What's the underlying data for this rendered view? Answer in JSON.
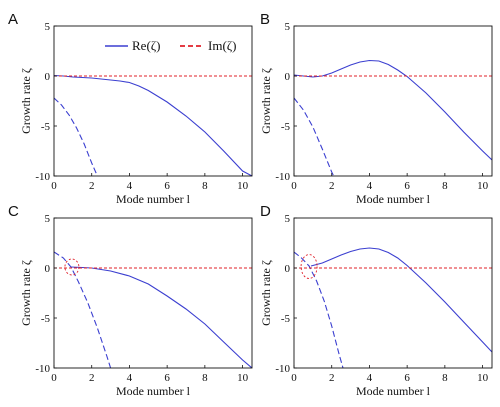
{
  "legend": {
    "re_label": "Re(ζ)",
    "im_label": "Im(ζ)"
  },
  "colors": {
    "re": "#3b3fd0",
    "im": "#e0202a",
    "axis": "#111111"
  },
  "chart_data": [
    {
      "id": "A",
      "type": "line",
      "xlabel": "Mode number l",
      "ylabel": "Growth rate ζ",
      "xlim": [
        0,
        10.5
      ],
      "ylim": [
        -10,
        5
      ],
      "xticks": [
        0,
        2,
        4,
        6,
        8,
        10
      ],
      "yticks": [
        -10,
        -5,
        0,
        5
      ],
      "grid": false,
      "legend": "top-center",
      "series": [
        {
          "name": "Re(ζ)",
          "style": "solid",
          "x": [
            0,
            0.5,
            1,
            1.5,
            2,
            2.5,
            3,
            3.5,
            4,
            4.5,
            5,
            6,
            7,
            8,
            9,
            10,
            10.5
          ],
          "y": [
            0.05,
            0.0,
            -0.1,
            -0.15,
            -0.2,
            -0.3,
            -0.4,
            -0.5,
            -0.65,
            -1.0,
            -1.45,
            -2.6,
            -4.0,
            -5.6,
            -7.5,
            -9.5,
            -10
          ]
        },
        {
          "name": "Re(ζ)",
          "style": "dashed",
          "x": [
            0,
            0.4,
            0.8,
            1.2,
            1.6,
            2.0,
            2.3
          ],
          "y": [
            -2.2,
            -2.9,
            -3.9,
            -5.2,
            -6.8,
            -8.7,
            -10
          ]
        },
        {
          "name": "Im(ζ)",
          "style": "dotted",
          "x": [
            0,
            10.5
          ],
          "y": [
            0,
            0
          ]
        }
      ]
    },
    {
      "id": "B",
      "type": "line",
      "xlabel": "Mode number l",
      "ylabel": "Growth rate ζ",
      "xlim": [
        0,
        10.5
      ],
      "ylim": [
        -10,
        5
      ],
      "xticks": [
        0,
        2,
        4,
        6,
        8,
        10
      ],
      "yticks": [
        -10,
        -5,
        0,
        5
      ],
      "grid": false,
      "series": [
        {
          "name": "Re(ζ)",
          "style": "solid",
          "x": [
            0,
            0.5,
            1,
            1.5,
            2,
            2.5,
            3,
            3.5,
            4,
            4.5,
            5,
            5.5,
            6,
            7,
            8,
            9,
            10,
            10.5
          ],
          "y": [
            0.1,
            0.0,
            -0.1,
            0.0,
            0.3,
            0.7,
            1.1,
            1.4,
            1.55,
            1.5,
            1.15,
            0.6,
            -0.05,
            -1.7,
            -3.6,
            -5.6,
            -7.5,
            -8.4
          ]
        },
        {
          "name": "Re(ζ)",
          "style": "dashed",
          "x": [
            0,
            0.5,
            1,
            1.5,
            2.0,
            2.1
          ],
          "y": [
            -2.2,
            -3.4,
            -5.1,
            -7.3,
            -9.6,
            -10
          ]
        },
        {
          "name": "Im(ζ)",
          "style": "dotted",
          "x": [
            0,
            10.5
          ],
          "y": [
            0,
            0
          ]
        }
      ]
    },
    {
      "id": "C",
      "type": "line",
      "xlabel": "Mode number l",
      "ylabel": "Growth rate ζ",
      "xlim": [
        0,
        10.5
      ],
      "ylim": [
        -10,
        5
      ],
      "xticks": [
        0,
        2,
        4,
        6,
        8,
        10
      ],
      "yticks": [
        -10,
        -5,
        0,
        5
      ],
      "grid": false,
      "series": [
        {
          "name": "Re(ζ)",
          "style": "solid",
          "x": [
            0.9,
            1.5,
            2,
            3,
            4,
            5,
            6,
            7,
            8,
            9,
            10,
            10.5
          ],
          "y": [
            0.1,
            0.05,
            0.0,
            -0.3,
            -0.8,
            -1.6,
            -2.8,
            -4.1,
            -5.6,
            -7.4,
            -9.2,
            -10
          ]
        },
        {
          "name": "Re(ζ)",
          "style": "dashed",
          "x": [
            0,
            0.5,
            0.9,
            1.3,
            1.8,
            2.3,
            2.8,
            3.0
          ],
          "y": [
            1.6,
            1.0,
            0.1,
            -1.4,
            -3.5,
            -6.0,
            -8.8,
            -10
          ]
        },
        {
          "name": "Im(ζ)",
          "style": "dotted",
          "x": [
            0,
            10.5
          ],
          "y": [
            0,
            0
          ]
        }
      ]
    },
    {
      "id": "D",
      "type": "line",
      "xlabel": "Mode number l",
      "ylabel": "Growth rate ζ",
      "xlim": [
        0,
        10.5
      ],
      "ylim": [
        -10,
        5
      ],
      "xticks": [
        0,
        2,
        4,
        6,
        8,
        10
      ],
      "yticks": [
        -10,
        -5,
        0,
        5
      ],
      "grid": false,
      "series": [
        {
          "name": "Re(ζ)",
          "style": "solid",
          "x": [
            0.9,
            1.5,
            2,
            2.5,
            3,
            3.5,
            4,
            4.5,
            5,
            5.5,
            6,
            7,
            8,
            9,
            10,
            10.5
          ],
          "y": [
            0.2,
            0.5,
            0.9,
            1.3,
            1.65,
            1.9,
            2.0,
            1.9,
            1.55,
            1.0,
            0.25,
            -1.5,
            -3.4,
            -5.4,
            -7.4,
            -8.4
          ]
        },
        {
          "name": "Re(ζ)",
          "style": "dashed",
          "x": [
            0,
            0.4,
            0.8,
            1.2,
            1.6,
            2.0,
            2.4,
            2.6
          ],
          "y": [
            1.6,
            1.0,
            0.2,
            -1.3,
            -3.3,
            -5.8,
            -8.7,
            -10
          ]
        },
        {
          "name": "Im(ζ)",
          "style": "dotted",
          "x": [
            0,
            0.5,
            1,
            10.5
          ],
          "y": [
            0,
            0,
            0,
            0
          ]
        }
      ]
    }
  ]
}
